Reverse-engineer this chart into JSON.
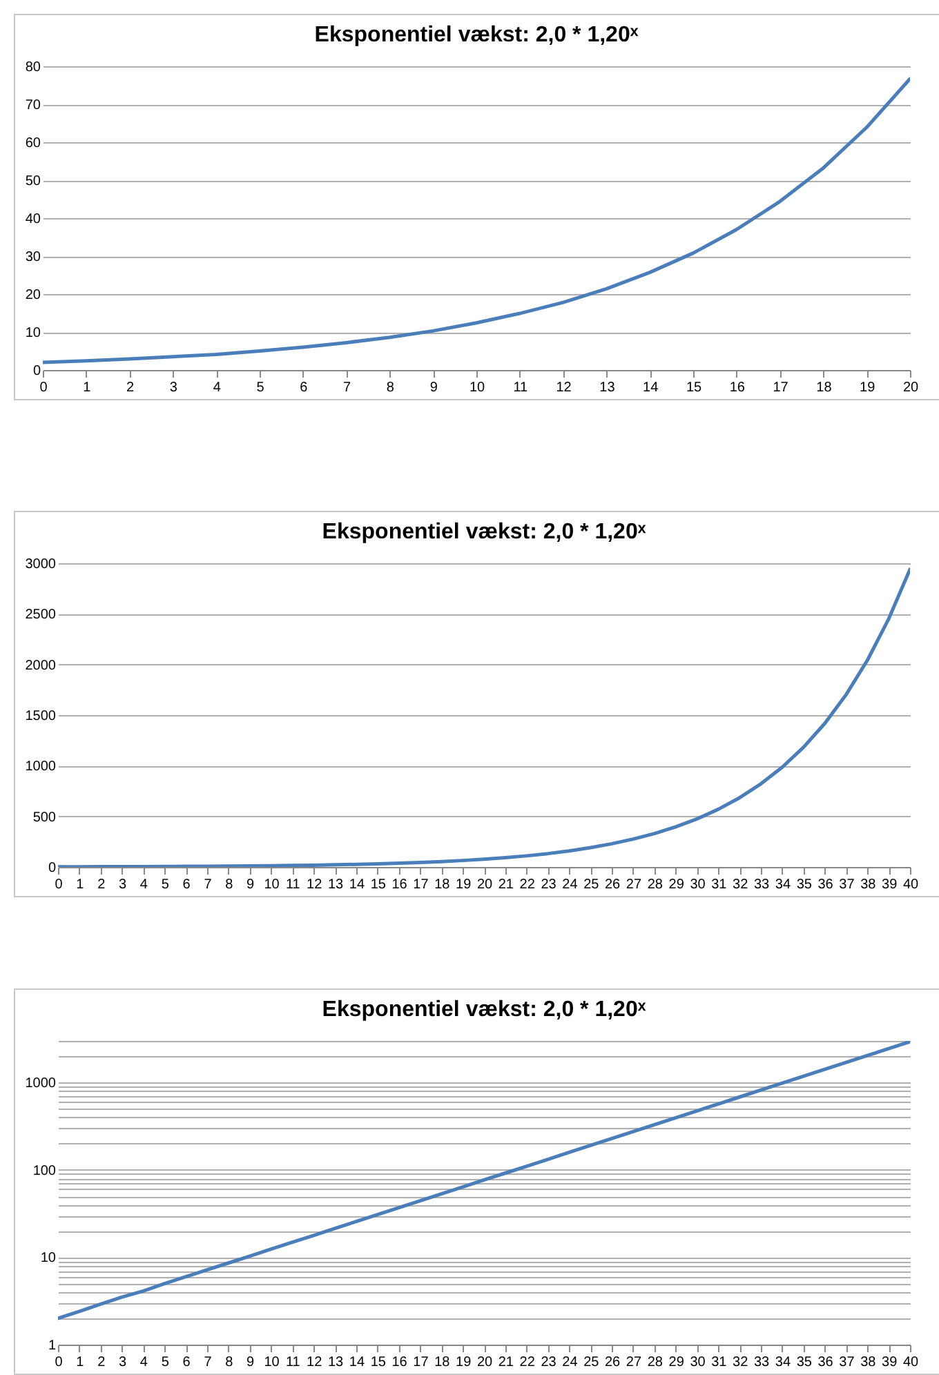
{
  "chart_data": [
    {
      "type": "line",
      "title": "Eksponentiel vækst:     2,0 * 1,20ˣ",
      "x": [
        0,
        1,
        2,
        3,
        4,
        5,
        6,
        7,
        8,
        9,
        10,
        11,
        12,
        13,
        14,
        15,
        16,
        17,
        18,
        19,
        20
      ],
      "series": [
        {
          "color": "#4a7ebb",
          "values": [
            2,
            2.4,
            2.9,
            3.5,
            4.1,
            5,
            6,
            7.2,
            8.6,
            10.3,
            12.4,
            14.9,
            17.8,
            21.4,
            25.7,
            30.8,
            37,
            44.4,
            53.2,
            63.9,
            76.7
          ]
        }
      ],
      "xlim": [
        0,
        20
      ],
      "xticks": [
        0,
        1,
        2,
        3,
        4,
        5,
        6,
        7,
        8,
        9,
        10,
        11,
        12,
        13,
        14,
        15,
        16,
        17,
        18,
        19,
        20
      ],
      "ylim": [
        0,
        80
      ],
      "yticks": [
        0,
        10,
        20,
        30,
        40,
        50,
        60,
        70,
        80
      ],
      "grid": "y",
      "marker": "none"
    },
    {
      "type": "line",
      "title": "Eksponentiel vækst:     2,0 * 1,20ˣ",
      "x": [
        0,
        1,
        2,
        3,
        4,
        5,
        6,
        7,
        8,
        9,
        10,
        11,
        12,
        13,
        14,
        15,
        16,
        17,
        18,
        19,
        20,
        21,
        22,
        23,
        24,
        25,
        26,
        27,
        28,
        29,
        30,
        31,
        32,
        33,
        34,
        35,
        36,
        37,
        38,
        39,
        40
      ],
      "series": [
        {
          "color": "#4a7ebb",
          "values": [
            2,
            2.4,
            2.9,
            3.5,
            4.1,
            5,
            6,
            7.2,
            8.6,
            10.3,
            12.4,
            14.9,
            17.8,
            21.4,
            25.7,
            30.8,
            37,
            44.4,
            53.2,
            63.9,
            76.7,
            92,
            110,
            132,
            159,
            191,
            229,
            275,
            330,
            396,
            475,
            570,
            684,
            821,
            985,
            1182,
            1418,
            1702,
            2042,
            2451,
            2941
          ]
        }
      ],
      "xlim": [
        0,
        40
      ],
      "xticks": [
        0,
        1,
        2,
        3,
        4,
        5,
        6,
        7,
        8,
        9,
        10,
        11,
        12,
        13,
        14,
        15,
        16,
        17,
        18,
        19,
        20,
        21,
        22,
        23,
        24,
        25,
        26,
        27,
        28,
        29,
        30,
        31,
        32,
        33,
        34,
        35,
        36,
        37,
        38,
        39,
        40
      ],
      "ylim": [
        0,
        3000
      ],
      "yticks": [
        0,
        500,
        1000,
        1500,
        2000,
        2500,
        3000
      ],
      "grid": "y",
      "marker": "none"
    },
    {
      "type": "line",
      "title": "Eksponentiel vækst:     2,0 * 1,20ˣ",
      "x": [
        0,
        1,
        2,
        3,
        4,
        5,
        6,
        7,
        8,
        9,
        10,
        11,
        12,
        13,
        14,
        15,
        16,
        17,
        18,
        19,
        20,
        21,
        22,
        23,
        24,
        25,
        26,
        27,
        28,
        29,
        30,
        31,
        32,
        33,
        34,
        35,
        36,
        37,
        38,
        39,
        40
      ],
      "series": [
        {
          "color": "#4a7ebb",
          "values": [
            2,
            2.4,
            2.9,
            3.5,
            4.1,
            5,
            6,
            7.2,
            8.6,
            10.3,
            12.4,
            14.9,
            17.8,
            21.4,
            25.7,
            30.8,
            37,
            44.4,
            53.2,
            63.9,
            76.7,
            92,
            110,
            132,
            159,
            191,
            229,
            275,
            330,
            396,
            475,
            570,
            684,
            821,
            985,
            1182,
            1418,
            1702,
            2042,
            2451,
            2941
          ]
        }
      ],
      "xlim": [
        0,
        40
      ],
      "xticks": [
        0,
        1,
        2,
        3,
        4,
        5,
        6,
        7,
        8,
        9,
        10,
        11,
        12,
        13,
        14,
        15,
        16,
        17,
        18,
        19,
        20,
        21,
        22,
        23,
        24,
        25,
        26,
        27,
        28,
        29,
        30,
        31,
        32,
        33,
        34,
        35,
        36,
        37,
        38,
        39,
        40
      ],
      "ylim": [
        1,
        3000
      ],
      "log": "y",
      "yticks": [
        1,
        {
          "value": 2,
          "label": null
        },
        {
          "value": 3,
          "label": null
        },
        {
          "value": 4,
          "label": null
        },
        {
          "value": 5,
          "label": null
        },
        {
          "value": 6,
          "label": null
        },
        {
          "value": 7,
          "label": null
        },
        {
          "value": 8,
          "label": null
        },
        {
          "value": 9,
          "label": null
        },
        10,
        {
          "value": 20,
          "label": null
        },
        {
          "value": 30,
          "label": null
        },
        {
          "value": 40,
          "label": null
        },
        {
          "value": 50,
          "label": null
        },
        {
          "value": 60,
          "label": null
        },
        {
          "value": 70,
          "label": null
        },
        {
          "value": 80,
          "label": null
        },
        {
          "value": 90,
          "label": null
        },
        100,
        {
          "value": 200,
          "label": null
        },
        {
          "value": 300,
          "label": null
        },
        {
          "value": 400,
          "label": null
        },
        {
          "value": 500,
          "label": null
        },
        {
          "value": 600,
          "label": null
        },
        {
          "value": 700,
          "label": null
        },
        {
          "value": 800,
          "label": null
        },
        {
          "value": 900,
          "label": null
        },
        1000,
        {
          "value": 2000,
          "label": null
        },
        {
          "value": 3000,
          "label": null
        }
      ],
      "grid": "y",
      "marker": "none"
    }
  ]
}
